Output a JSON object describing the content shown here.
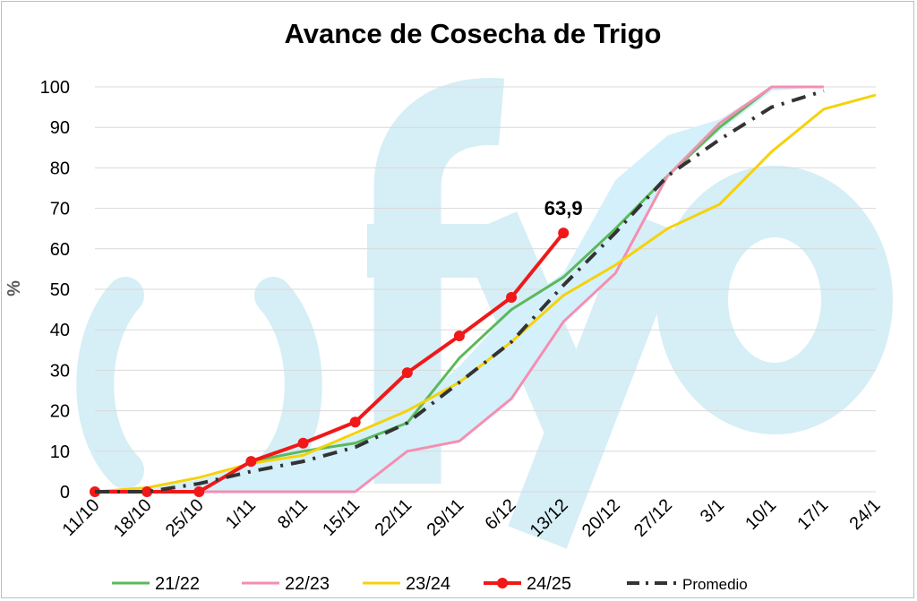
{
  "chart_data": {
    "type": "line",
    "title": "Avance de Cosecha de Trigo",
    "xlabel": "",
    "ylabel": "%",
    "ylim": [
      0,
      100
    ],
    "yticks": [
      0,
      10,
      20,
      30,
      40,
      50,
      60,
      70,
      80,
      90,
      100
    ],
    "categories": [
      "11/10",
      "18/10",
      "25/10",
      "1/11",
      "8/11",
      "15/11",
      "22/11",
      "29/11",
      "6/12",
      "13/12",
      "20/12",
      "27/12",
      "3/1",
      "10/1",
      "17/1",
      "24/1"
    ],
    "grid": true,
    "legend_position": "bottom",
    "watermark": "fyo",
    "band": {
      "fill": "#d4f0fb",
      "lower": [
        0,
        0,
        0,
        0,
        0,
        0,
        10,
        12.5,
        23,
        42,
        54,
        78,
        89,
        99,
        100,
        98
      ],
      "upper": [
        0,
        1,
        3,
        7,
        10,
        14,
        20,
        31,
        45,
        54,
        77,
        88,
        92,
        100,
        100,
        98
      ]
    },
    "series": [
      {
        "name": "21/22",
        "color": "#5cb85c",
        "style": "solid",
        "values": [
          0,
          0,
          0,
          7.5,
          10,
          12,
          17,
          33,
          45,
          53,
          65,
          78,
          90,
          100,
          null,
          null
        ]
      },
      {
        "name": "22/23",
        "color": "#f48fb1",
        "style": "solid",
        "values": [
          0,
          0,
          0,
          0,
          0,
          0,
          10,
          12.5,
          23,
          42,
          54,
          78,
          91,
          100,
          100,
          null
        ]
      },
      {
        "name": "23/24",
        "color": "#f5d20a",
        "style": "solid",
        "values": [
          0,
          1,
          3.5,
          7,
          9,
          14.5,
          20,
          27,
          37,
          48.5,
          56,
          65,
          71,
          84,
          94.5,
          98
        ]
      },
      {
        "name": "24/25",
        "color": "#f01818",
        "style": "markers",
        "values": [
          0,
          0,
          0,
          7.5,
          12,
          17.2,
          29.4,
          38.5,
          48,
          63.9,
          null,
          null,
          null,
          null,
          null,
          null
        ]
      },
      {
        "name": "Promedio",
        "color": "#333333",
        "style": "dashdot",
        "values": [
          0,
          0,
          2,
          5,
          7.5,
          11,
          17,
          27,
          37,
          51,
          64,
          78,
          87,
          95,
          99,
          null
        ]
      }
    ],
    "annotations": [
      {
        "text": "63,9",
        "series": "24/25",
        "category": "13/12",
        "value": 63.9
      }
    ]
  }
}
